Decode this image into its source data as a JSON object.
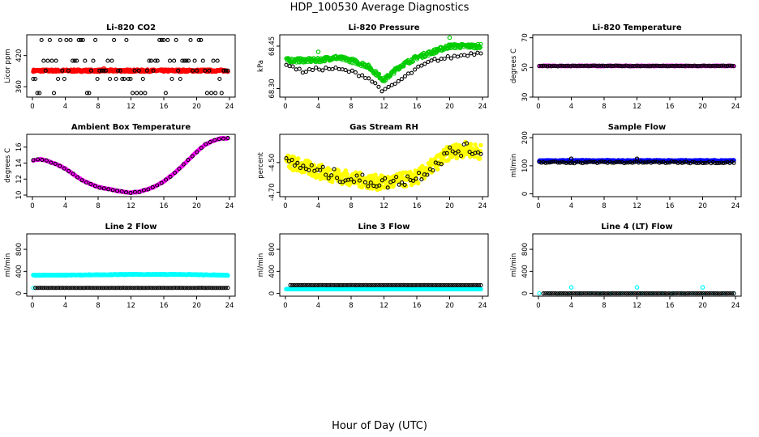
{
  "title": "HDP_100530  Average Diagnostics",
  "xlabel": "Hour of Day (UTC)",
  "colors": {
    "red": "#ff0000",
    "green": "#00cc00",
    "magenta": "#ff00ff",
    "yellow": "#ffff00",
    "blue": "#0000ff",
    "cyan": "#00ffff",
    "black": "#000000"
  },
  "chart_data": [
    {
      "type": "scatter",
      "title": "Li-820 CO2",
      "ylabel": "Licor ppm",
      "xlim": [
        0,
        24
      ],
      "xticks": [
        "0",
        "4",
        "8",
        "12",
        "16",
        "20",
        "24"
      ],
      "ylim": [
        340,
        460
      ],
      "yticks": [
        360,
        420
      ],
      "ytick_labels": [
        "360",
        "420"
      ],
      "series": [
        {
          "name": "primary",
          "color": "red",
          "fill": true,
          "pattern": "flat",
          "level": 391,
          "noise": 2,
          "outliers": [
            [
              8.7,
              395
            ]
          ]
        },
        {
          "name": "secondary",
          "color": "black",
          "fill": false,
          "pattern": "scatter_bands",
          "levels": [
            348,
            375,
            391,
            410,
            450
          ],
          "count": 95
        }
      ]
    },
    {
      "type": "scatter",
      "title": "Li-820 Pressure",
      "ylabel": "kPa",
      "xlim": [
        0,
        24
      ],
      "xticks": [
        "0",
        "4",
        "8",
        "12",
        "16",
        "20",
        "24"
      ],
      "ylim": [
        68.27,
        68.49
      ],
      "yticks": [
        68.3,
        68.45
      ],
      "ytick_labels": [
        "68.30",
        "68.45"
      ],
      "series": [
        {
          "name": "primary",
          "color": "green",
          "fill": false,
          "pattern": "curve",
          "points": [
            [
              0,
              68.4
            ],
            [
              2,
              68.4
            ],
            [
              4,
              68.4
            ],
            [
              6,
              68.41
            ],
            [
              8,
              68.4
            ],
            [
              10,
              68.38
            ],
            [
              12,
              68.33
            ],
            [
              14,
              68.38
            ],
            [
              16,
              68.41
            ],
            [
              18,
              68.43
            ],
            [
              20,
              68.45
            ],
            [
              22,
              68.45
            ],
            [
              24,
              68.45
            ]
          ],
          "noise": 0.008,
          "outliers": [
            [
              4,
              68.43
            ],
            [
              20,
              68.48
            ]
          ]
        },
        {
          "name": "secondary",
          "color": "black",
          "fill": false,
          "pattern": "curve",
          "points": [
            [
              0,
              68.39
            ],
            [
              2,
              68.36
            ],
            [
              4,
              68.37
            ],
            [
              6,
              68.37
            ],
            [
              8,
              68.36
            ],
            [
              10,
              68.34
            ],
            [
              12,
              68.29
            ],
            [
              14,
              68.33
            ],
            [
              16,
              68.37
            ],
            [
              18,
              68.4
            ],
            [
              20,
              68.41
            ],
            [
              22,
              68.42
            ],
            [
              24,
              68.43
            ]
          ],
          "noise": 0.006,
          "count": 60
        }
      ]
    },
    {
      "type": "scatter",
      "title": "Li-820 Temperature",
      "ylabel": "degrees C",
      "xlim": [
        0,
        24
      ],
      "xticks": [
        "0",
        "4",
        "8",
        "12",
        "16",
        "20",
        "24"
      ],
      "ylim": [
        30,
        72
      ],
      "yticks": [
        30,
        50,
        70
      ],
      "ytick_labels": [
        "30",
        "50",
        "70"
      ],
      "series": [
        {
          "name": "primary",
          "color": "magenta",
          "fill": false,
          "pattern": "flat",
          "level": 51,
          "noise": 0.2
        },
        {
          "name": "secondary",
          "color": "black",
          "fill": false,
          "pattern": "flat",
          "level": 51,
          "noise": 0.2,
          "count": 95
        }
      ]
    },
    {
      "type": "scatter",
      "title": "Ambient Box Temperature",
      "ylabel": "degrees C",
      "xlim": [
        0,
        24
      ],
      "xticks": [
        "0",
        "4",
        "8",
        "12",
        "16",
        "20",
        "24"
      ],
      "ylim": [
        9.8,
        17.6
      ],
      "yticks": [
        10,
        12,
        14,
        16
      ],
      "ytick_labels": [
        "10",
        "12",
        "14",
        "16"
      ],
      "series": [
        {
          "name": "primary",
          "color": "magenta",
          "fill": false,
          "pattern": "curve",
          "points": [
            [
              0,
              14.3
            ],
            [
              1,
              14.5
            ],
            [
              2,
              14.2
            ],
            [
              3,
              13.8
            ],
            [
              4,
              13.3
            ],
            [
              5,
              12.6
            ],
            [
              6,
              11.9
            ],
            [
              7,
              11.4
            ],
            [
              8,
              11.0
            ],
            [
              9,
              10.8
            ],
            [
              10,
              10.6
            ],
            [
              11,
              10.4
            ],
            [
              12,
              10.3
            ],
            [
              13,
              10.4
            ],
            [
              14,
              10.7
            ],
            [
              15,
              11.1
            ],
            [
              16,
              11.7
            ],
            [
              17,
              12.5
            ],
            [
              18,
              13.4
            ],
            [
              19,
              14.4
            ],
            [
              20,
              15.4
            ],
            [
              21,
              16.3
            ],
            [
              22,
              16.8
            ],
            [
              23,
              17.1
            ],
            [
              24,
              17.1
            ]
          ],
          "noise": 0.05
        },
        {
          "name": "secondary",
          "color": "black",
          "fill": false,
          "pattern": "curve",
          "points": [
            [
              0,
              14.3
            ],
            [
              1,
              14.5
            ],
            [
              2,
              14.2
            ],
            [
              3,
              13.8
            ],
            [
              4,
              13.3
            ],
            [
              5,
              12.6
            ],
            [
              6,
              11.9
            ],
            [
              7,
              11.4
            ],
            [
              8,
              11.0
            ],
            [
              9,
              10.8
            ],
            [
              10,
              10.6
            ],
            [
              11,
              10.4
            ],
            [
              12,
              10.3
            ],
            [
              13,
              10.4
            ],
            [
              14,
              10.7
            ],
            [
              15,
              11.1
            ],
            [
              16,
              11.7
            ],
            [
              17,
              12.5
            ],
            [
              18,
              13.4
            ],
            [
              19,
              14.4
            ],
            [
              20,
              15.4
            ],
            [
              21,
              16.3
            ],
            [
              22,
              16.8
            ],
            [
              23,
              17.1
            ],
            [
              24,
              17.1
            ]
          ],
          "noise": 0.05,
          "count": 45
        }
      ]
    },
    {
      "type": "scatter",
      "title": "Gas Stream RH",
      "ylabel": "percent",
      "xlim": [
        0,
        24
      ],
      "xticks": [
        "0",
        "4",
        "8",
        "12",
        "16",
        "20",
        "24"
      ],
      "ylim": [
        -4.73,
        -4.31
      ],
      "yticks": [
        -4.7,
        -4.5
      ],
      "ytick_labels": [
        "-4.70",
        "-4.50"
      ],
      "series": [
        {
          "name": "primary",
          "color": "yellow",
          "fill": true,
          "pattern": "curve",
          "points": [
            [
              0,
              -4.49
            ],
            [
              4,
              -4.56
            ],
            [
              8,
              -4.61
            ],
            [
              12,
              -4.64
            ],
            [
              16,
              -4.6
            ],
            [
              18,
              -4.52
            ],
            [
              20,
              -4.43
            ],
            [
              22,
              -4.41
            ],
            [
              24,
              -4.43
            ]
          ],
          "noise": 0.05
        },
        {
          "name": "secondary",
          "color": "black",
          "fill": false,
          "pattern": "curve",
          "points": [
            [
              0,
              -4.49
            ],
            [
              4,
              -4.56
            ],
            [
              8,
              -4.61
            ],
            [
              12,
              -4.64
            ],
            [
              16,
              -4.6
            ],
            [
              18,
              -4.52
            ],
            [
              20,
              -4.43
            ],
            [
              22,
              -4.41
            ],
            [
              24,
              -4.43
            ]
          ],
          "noise": 0.04,
          "count": 70
        }
      ]
    },
    {
      "type": "scatter",
      "title": "Sample Flow",
      "ylabel": "ml/min",
      "xlim": [
        0,
        24
      ],
      "xticks": [
        "0",
        "4",
        "8",
        "12",
        "16",
        "20",
        "24"
      ],
      "ylim": [
        -10,
        212
      ],
      "yticks": [
        0,
        100,
        200
      ],
      "ytick_labels": [
        "0",
        "100",
        "200"
      ],
      "series": [
        {
          "name": "primary",
          "color": "blue",
          "fill": true,
          "pattern": "flat",
          "level": 118,
          "noise": 2
        },
        {
          "name": "secondary",
          "color": "black",
          "fill": false,
          "pattern": "flat",
          "level": 112,
          "noise": 3,
          "count": 95,
          "outliers": [
            [
              4,
              125
            ],
            [
              12,
              125
            ]
          ]
        }
      ]
    },
    {
      "type": "scatter",
      "title": "Line 2 Flow",
      "ylabel": "ml/min",
      "xlim": [
        0,
        24
      ],
      "xticks": [
        "0",
        "4",
        "8",
        "12",
        "16",
        "20",
        "24"
      ],
      "ylim": [
        -50,
        1080
      ],
      "yticks": [
        0,
        400,
        800
      ],
      "ytick_labels": [
        "0",
        "400",
        "800"
      ],
      "series": [
        {
          "name": "primary",
          "color": "cyan",
          "fill": true,
          "pattern": "curve",
          "points": [
            [
              0,
              330
            ],
            [
              6,
              335
            ],
            [
              12,
              345
            ],
            [
              18,
              345
            ],
            [
              24,
              330
            ]
          ],
          "noise": 6
        },
        {
          "name": "secondary",
          "color": "black",
          "fill": false,
          "pattern": "flat",
          "level": 100,
          "noise": 1,
          "count": 95,
          "first_point_color": "cyan"
        }
      ]
    },
    {
      "type": "scatter",
      "title": "Line 3 Flow",
      "ylabel": "ml/min",
      "xlim": [
        0,
        24
      ],
      "xticks": [
        "0",
        "4",
        "8",
        "12",
        "16",
        "20",
        "24"
      ],
      "ylim": [
        -50,
        1080
      ],
      "yticks": [
        0,
        400,
        800
      ],
      "ytick_labels": [
        "0",
        "400",
        "800"
      ],
      "series": [
        {
          "name": "primary",
          "color": "cyan",
          "fill": true,
          "pattern": "flat",
          "level": 80,
          "noise": 3
        },
        {
          "name": "secondary",
          "color": "black",
          "fill": false,
          "pattern": "flat",
          "level": 150,
          "noise": 1,
          "count": 95,
          "start": 0.6
        }
      ]
    },
    {
      "type": "scatter",
      "title": "Line 4 (LT) Flow",
      "ylabel": "ml/min",
      "xlim": [
        0,
        24
      ],
      "xticks": [
        "0",
        "4",
        "8",
        "12",
        "16",
        "20",
        "24"
      ],
      "ylim": [
        -50,
        1080
      ],
      "yticks": [
        0,
        400,
        800
      ],
      "ytick_labels": [
        "0",
        "400",
        "800"
      ],
      "series": [
        {
          "name": "primary",
          "color": "cyan",
          "fill": false,
          "pattern": "flat",
          "level": 0,
          "noise": 1,
          "count": 20,
          "outliers": [
            [
              4,
              110
            ],
            [
              12,
              110
            ],
            [
              20,
              110
            ]
          ]
        },
        {
          "name": "secondary",
          "color": "black",
          "fill": false,
          "pattern": "flat",
          "level": 0,
          "noise": 1,
          "count": 95,
          "start": 0.6
        }
      ]
    }
  ]
}
